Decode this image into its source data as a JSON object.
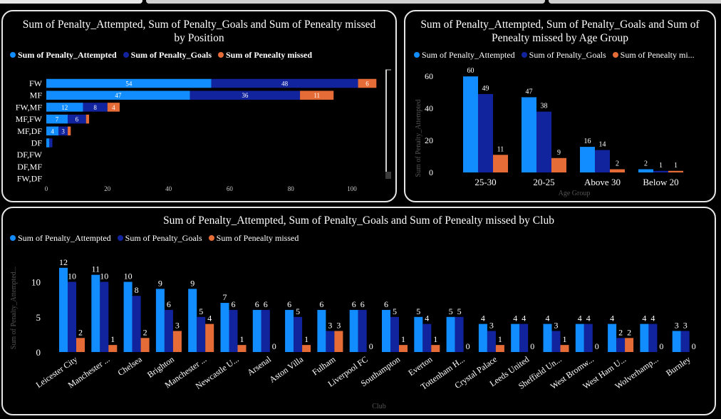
{
  "colors": {
    "attempted": "#118dff",
    "goals": "#12239e",
    "missed": "#e66c37",
    "axis": "#8a8a8a",
    "label": "#ffffff"
  },
  "chart_data": [
    {
      "id": "position",
      "type": "bar",
      "orientation": "horizontal",
      "stacked": true,
      "title": "Sum of Penalty_Attempted, Sum of Penalty_Goals and Sum of Penealty missed by Position",
      "categories": [
        "FW",
        "MF",
        "FW,MF",
        "MF,FW",
        "MF,DF",
        "DF",
        "DF,FW",
        "DF,MF",
        "FW,DF"
      ],
      "series": [
        {
          "name": "Sum of Penalty_Attempted",
          "values": [
            54,
            47,
            12,
            7,
            4,
            1,
            0,
            0,
            0
          ]
        },
        {
          "name": "Sum of Penalty_Goals",
          "values": [
            48,
            36,
            8,
            6,
            3,
            1,
            0,
            0,
            0
          ]
        },
        {
          "name": "Sum of Penealty missed",
          "values": [
            6,
            11,
            4,
            1,
            1,
            0,
            0,
            0,
            0
          ]
        }
      ],
      "xticks": [
        "0",
        "20",
        "40",
        "60",
        "80",
        "100"
      ],
      "xlim": [
        0,
        110
      ],
      "legend_position": "top-left"
    },
    {
      "id": "age",
      "type": "bar",
      "title": "Sum of Penalty_Attempted, Sum of Penalty_Goals and Sum of Penealty missed by Age Group",
      "xlabel": "Age Group",
      "ylabel": "Sum of Penalty_Attempted",
      "categories": [
        "25-30",
        "20-25",
        "Above 30",
        "Below 20"
      ],
      "series": [
        {
          "name": "Sum of Penalty_Attempted",
          "values": [
            60,
            47,
            16,
            2
          ]
        },
        {
          "name": "Sum of Penalty_Goals",
          "values": [
            49,
            38,
            14,
            1
          ]
        },
        {
          "name": "Sum of Penealty missed",
          "values": [
            11,
            9,
            2,
            1
          ]
        }
      ],
      "legend_labels": [
        "Sum of Penalty_Attempted",
        "Sum of Penalty_Goals",
        "Sum of Penealty mi..."
      ],
      "yticks": [
        "0",
        "20",
        "40",
        "60"
      ],
      "ylim": [
        0,
        65
      ],
      "legend_position": "top-left"
    },
    {
      "id": "club",
      "type": "bar",
      "title": "Sum of Penalty_Attempted, Sum of Penalty_Goals and Sum of Penealty missed by Club",
      "xlabel": "Club",
      "ylabel": "Sum of Penalty_Attempted...",
      "categories": [
        "Leicester City",
        "Manchester ...",
        "Chelsea",
        "Brighton",
        "Manchester ...",
        "Newcastle U...",
        "Arsenal",
        "Aston Villa",
        "Fulham",
        "Liverpool FC",
        "Southampton",
        "Everton",
        "Tottenham H...",
        "Crystal Palace",
        "Leeds United",
        "Sheffield Un...",
        "West Bromw...",
        "West Ham U...",
        "Wolverhamp...",
        "Burnley"
      ],
      "series": [
        {
          "name": "Sum of Penalty_Attempted",
          "values": [
            12,
            11,
            10,
            9,
            9,
            7,
            6,
            6,
            6,
            6,
            6,
            5,
            5,
            4,
            4,
            4,
            4,
            4,
            4,
            3
          ]
        },
        {
          "name": "Sum of Penalty_Goals",
          "values": [
            10,
            10,
            8,
            6,
            5,
            6,
            6,
            5,
            3,
            6,
            5,
            4,
            5,
            3,
            4,
            3,
            4,
            2,
            4,
            3
          ]
        },
        {
          "name": "Sum of Penealty missed",
          "values": [
            2,
            1,
            2,
            3,
            4,
            1,
            0,
            1,
            3,
            0,
            1,
            1,
            0,
            1,
            0,
            1,
            0,
            2,
            0,
            0
          ]
        }
      ],
      "yticks": [
        "0",
        "5",
        "10"
      ],
      "ylim": [
        0,
        13.2
      ],
      "legend_position": "top-left"
    }
  ]
}
